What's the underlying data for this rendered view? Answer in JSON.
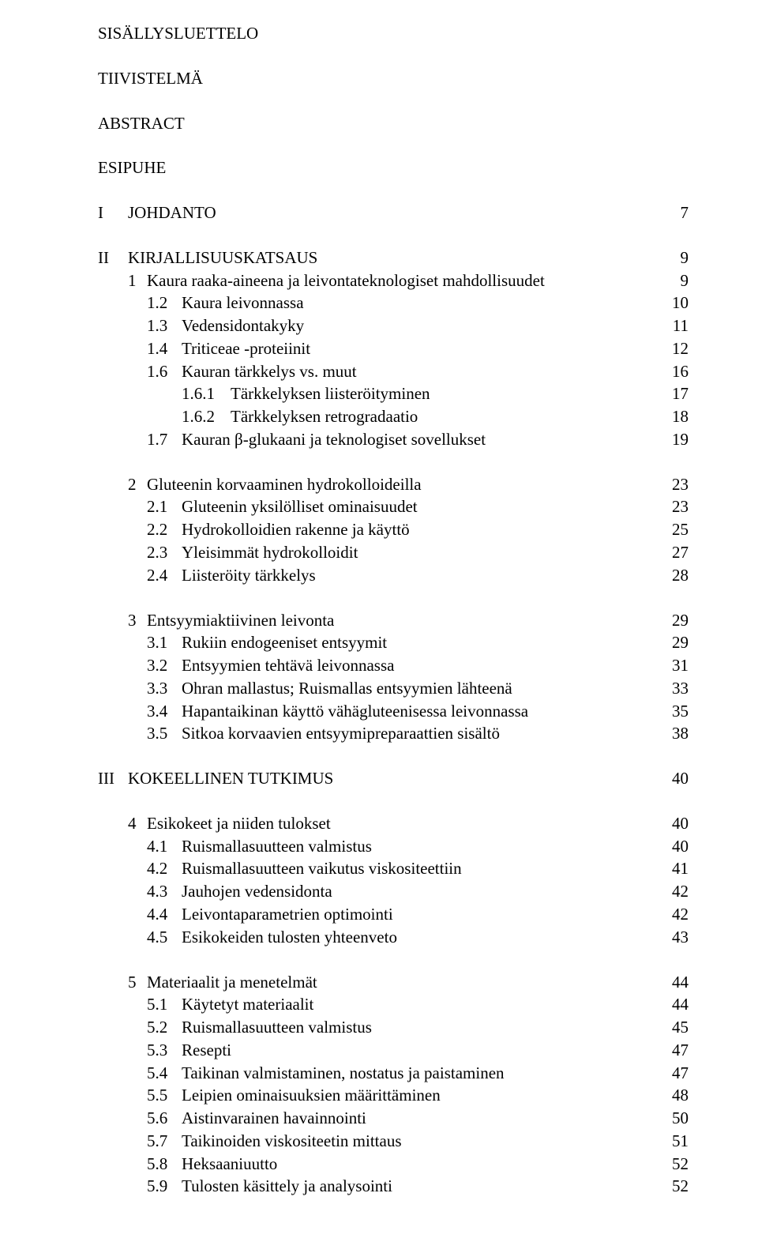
{
  "top": {
    "l1": "SISÄLLYSLUETTELO",
    "l2": "TIIVISTELMÄ",
    "l3": "ABSTRACT",
    "l4": "ESIPUHE"
  },
  "I": {
    "roman": "I",
    "title": "JOHDANTO",
    "page": "7"
  },
  "II": {
    "roman": "II",
    "title": "KIRJALLISUUSKATSAUS",
    "page": "9",
    "s1": {
      "num": "1",
      "title": "Kaura raaka-aineena ja leivontateknologiset mahdollisuudet",
      "page": "9",
      "i1": {
        "num": "1.2",
        "title": "Kaura leivonnassa",
        "page": "10"
      },
      "i2": {
        "num": "1.3",
        "title": "Vedensidontakyky",
        "page": "11"
      },
      "i3": {
        "num": "1.4",
        "title": "Triticeae -proteiinit",
        "page": "12"
      },
      "i4": {
        "num": "1.6",
        "title": "Kauran tärkkelys vs. muut",
        "page": "16"
      },
      "i5": {
        "num": "1.6.1",
        "title": "Tärkkelyksen liisteröityminen",
        "page": "17"
      },
      "i6": {
        "num": "1.6.2",
        "title": "Tärkkelyksen retrogradaatio",
        "page": "18"
      },
      "i7": {
        "num": "1.7",
        "title": "Kauran β-glukaani ja teknologiset sovellukset",
        "page": "19"
      }
    },
    "s2": {
      "num": "2",
      "title": "Gluteenin korvaaminen hydrokolloideilla",
      "page": "23",
      "i1": {
        "num": "2.1",
        "title": "Gluteenin yksilölliset ominaisuudet",
        "page": "23"
      },
      "i2": {
        "num": "2.2",
        "title": "Hydrokolloidien rakenne ja käyttö",
        "page": "25"
      },
      "i3": {
        "num": "2.3",
        "title": "Yleisimmät hydrokolloidit",
        "page": "27"
      },
      "i4": {
        "num": "2.4",
        "title": "Liisteröity tärkkelys",
        "page": "28"
      }
    },
    "s3": {
      "num": "3",
      "title": "Entsyymiaktiivinen leivonta",
      "page": "29",
      "i1": {
        "num": "3.1",
        "title": "Rukiin endogeeniset entsyymit",
        "page": "29"
      },
      "i2": {
        "num": "3.2",
        "title": "Entsyymien tehtävä leivonnassa",
        "page": "31"
      },
      "i3": {
        "num": "3.3",
        "title": "Ohran mallastus; Ruismallas entsyymien lähteenä",
        "page": "33"
      },
      "i4": {
        "num": "3.4",
        "title": "Hapantaikinan käyttö vähägluteenisessa leivonnassa",
        "page": "35"
      },
      "i5": {
        "num": "3.5",
        "title": "Sitkoa korvaavien entsyymipreparaattien sisältö",
        "page": "38"
      }
    }
  },
  "III": {
    "roman": "III",
    "title": "KOKEELLINEN TUTKIMUS",
    "page": "40",
    "s4": {
      "num": "4",
      "title": "Esikokeet ja niiden tulokset",
      "page": "40",
      "i1": {
        "num": "4.1",
        "title": "Ruismallasuutteen valmistus",
        "page": "40"
      },
      "i2": {
        "num": "4.2",
        "title": "Ruismallasuutteen vaikutus viskositeettiin",
        "page": "41"
      },
      "i3": {
        "num": "4.3",
        "title": "Jauhojen vedensidonta",
        "page": "42"
      },
      "i4": {
        "num": "4.4",
        "title": "Leivontaparametrien optimointi",
        "page": "42"
      },
      "i5": {
        "num": "4.5",
        "title": "Esikokeiden tulosten yhteenveto",
        "page": "43"
      }
    },
    "s5": {
      "num": "5",
      "title": "Materiaalit ja menetelmät",
      "page": "44",
      "i1": {
        "num": "5.1",
        "title": "Käytetyt materiaalit",
        "page": "44"
      },
      "i2": {
        "num": "5.2",
        "title": "Ruismallasuutteen valmistus",
        "page": "45"
      },
      "i3": {
        "num": "5.3",
        "title": "Resepti",
        "page": "47"
      },
      "i4": {
        "num": "5.4",
        "title": "Taikinan valmistaminen, nostatus ja paistaminen",
        "page": "47"
      },
      "i5": {
        "num": "5.5",
        "title": "Leipien ominaisuuksien määrittäminen",
        "page": "48"
      },
      "i6": {
        "num": "5.6",
        "title": "Aistinvarainen havainnointi",
        "page": "50"
      },
      "i7": {
        "num": "5.7",
        "title": "Taikinoiden viskositeetin mittaus",
        "page": "51"
      },
      "i8": {
        "num": "5.8",
        "title": "Heksaaniuutto",
        "page": "52"
      },
      "i9": {
        "num": "5.9",
        "title": "Tulosten käsittely ja analysointi",
        "page": "52"
      }
    }
  }
}
